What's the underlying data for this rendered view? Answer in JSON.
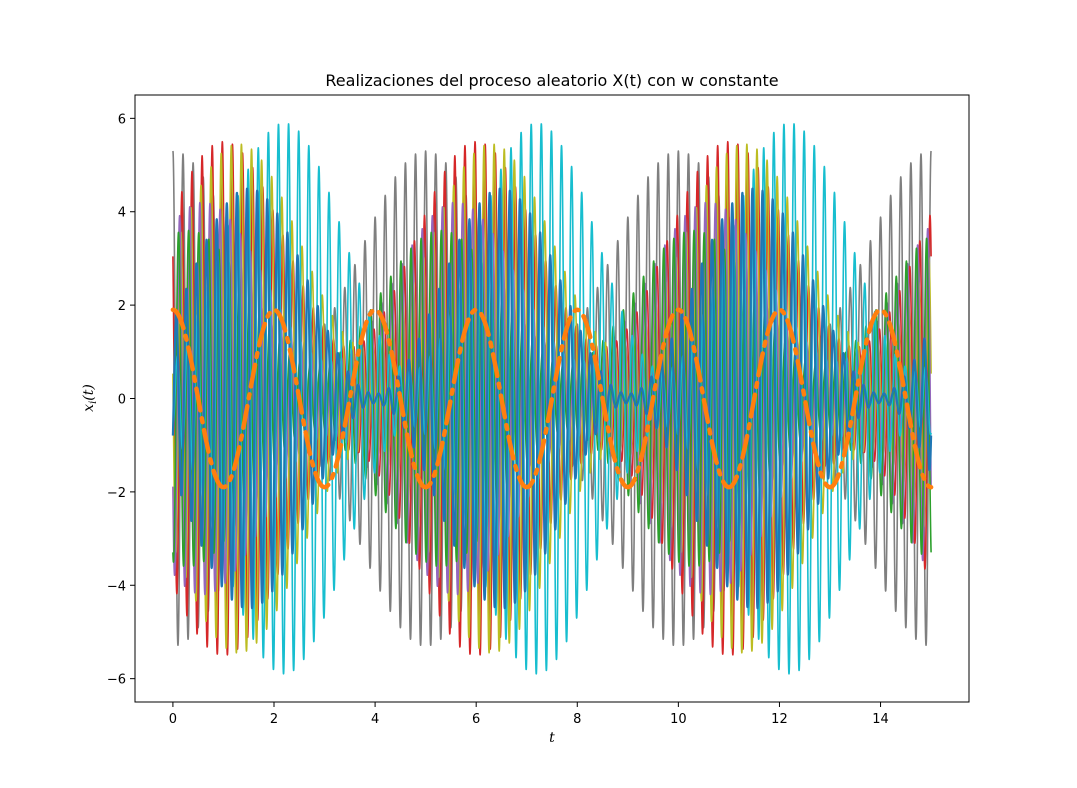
{
  "chart_data": {
    "type": "line",
    "title": "Realizaciones del proceso aleatorio X(t) con w constante",
    "xlabel": "t",
    "ylabel": "x_i(t)",
    "xlim": [
      -0.75,
      15.75
    ],
    "ylim": [
      -6.5,
      6.5
    ],
    "xticks": [
      0,
      2,
      4,
      6,
      8,
      10,
      12,
      14
    ],
    "yticks": [
      -6,
      -4,
      -2,
      0,
      2,
      4,
      6
    ],
    "xtick_labels": [
      "0",
      "2",
      "4",
      "6",
      "8",
      "10",
      "12",
      "14"
    ],
    "ytick_labels": [
      "−6",
      "−4",
      "−2",
      "0",
      "2",
      "4",
      "6"
    ],
    "grid": false,
    "x_range": [
      0,
      15
    ],
    "carrier_period": 0.2,
    "envelope_period": 5,
    "series": [
      {
        "color": "#7f7f7f",
        "amplitude_max": 5.3,
        "amplitude_min": 1.2,
        "envelope_peak_t": 0
      },
      {
        "color": "#d62728",
        "amplitude_max": 5.5,
        "amplitude_min": 1.1,
        "envelope_peak_t": 1.0
      },
      {
        "color": "#bcbd22",
        "amplitude_max": 5.45,
        "amplitude_min": 1.1,
        "envelope_peak_t": 1.3
      },
      {
        "color": "#9467bd",
        "amplitude_max": 4.2,
        "amplitude_min": 0.8,
        "envelope_peak_t": 0.6
      },
      {
        "color": "#2ca02c",
        "amplitude_max": 3.6,
        "amplitude_min": 0.7,
        "envelope_peak_t": 0.3
      },
      {
        "color": "#17becf",
        "amplitude_max": 5.9,
        "amplitude_min": 0.6,
        "envelope_peak_t": 2.2
      },
      {
        "color": "#1f77b4",
        "amplitude_max": 4.5,
        "amplitude_min": 0.1,
        "envelope_peak_t": 1.5,
        "thick": true
      }
    ],
    "mean_curve": {
      "color": "#ff7f0e",
      "amplitude": 1.9,
      "period": 2,
      "phase_t": 0,
      "style": "dashdot"
    }
  }
}
